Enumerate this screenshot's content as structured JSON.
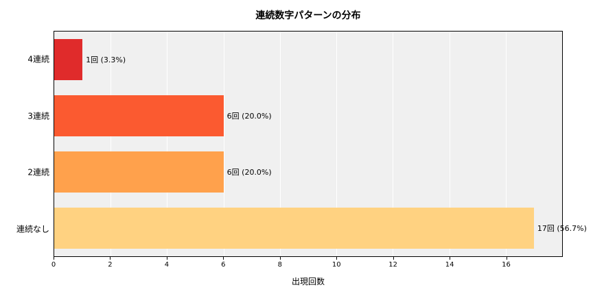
{
  "chart_data": {
    "type": "bar",
    "orientation": "horizontal",
    "title": "連続数字パターンの分布",
    "xlabel": "出現回数",
    "ylabel": "",
    "categories": [
      "4連続",
      "3連続",
      "2連続",
      "連続なし"
    ],
    "values": [
      1,
      6,
      6,
      17
    ],
    "value_labels": [
      "1回 (3.3%)",
      "6回 (20.0%)",
      "6回 (20.0%)",
      "17回 (56.7%)"
    ],
    "bar_colors": [
      "#e02b2b",
      "#fb5a30",
      "#ffa14c",
      "#ffd281"
    ],
    "xlim": [
      0,
      18
    ],
    "xticks": [
      0,
      2,
      4,
      6,
      8,
      10,
      12,
      14,
      16
    ],
    "grid": true,
    "grid_color": "#ffffff",
    "plot_background": "#f0f0f0",
    "legend_position": "none"
  }
}
